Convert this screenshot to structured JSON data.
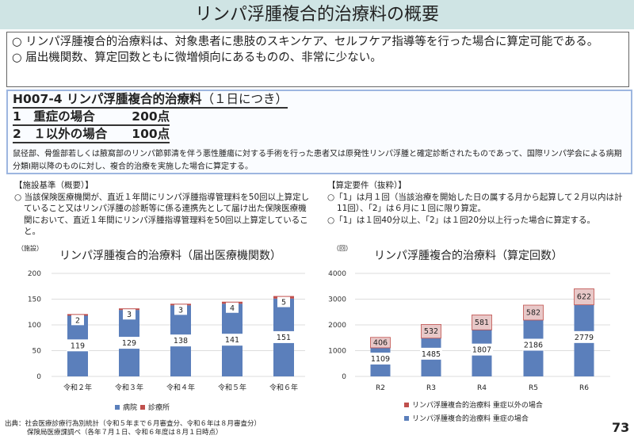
{
  "title": "リンパ浮腫複合的治療料の概要",
  "summary": [
    "○ リンパ浮腫複合的治療料は、対象患者に患肢のスキンケア、セルフケア指導等を行った場合に算定可能である。",
    "○ 届出機関数、算定回数ともに微増傾向にあるものの、非常に少ない。"
  ],
  "code": {
    "heading": "H007-4 リンパ浮腫複合的治療料",
    "heading_note": "（１日につき）",
    "item1": "1　重症の場合　　　200点",
    "item2": "2　１以外の場合　　100点",
    "desc": "鼠径部、骨盤部若しくは腋窩部のリンパ節郭清を伴う悪性腫瘍に対する手術を行った患者又は原発性リンパ浮腫と確定診断されたものであって、国際リンパ学会による病期分類Ⅰ期以降のものに対し、複合的治療を実施した場合に算定する。"
  },
  "facility": {
    "heading": "【施設基準（概要）】",
    "text": "○ 当該保険医療機関が、直近１年間にリンパ浮腫指導管理料を50回以上算定していること又はリンパ浮腫の診断等に係る連携先として届け出た保険医療機関において、直近１年間にリンパ浮腫指導管理料を50回以上算定していること。"
  },
  "requirements": {
    "heading": "【算定要件（抜粋）】",
    "items": [
      "○「1」は月１回（当該治療を開始した日の属する月から起算して２月以内は計11回）、「2」は６月に１回に限り算定。",
      "○「1」は１回40分以上、「2」は１回20分以上行った場合に算定する。"
    ]
  },
  "chart_data": [
    {
      "type": "bar",
      "stacked": true,
      "title": "リンパ浮腫複合的治療料（届出医療機関数）",
      "unit": "（施設）",
      "categories": [
        "令和２年",
        "令和３年",
        "令和４年",
        "令和５年",
        "令和６年"
      ],
      "ylim": [
        0,
        200
      ],
      "yticks": [
        0,
        50,
        100,
        150,
        200
      ],
      "series": [
        {
          "name": "病院",
          "values": [
            119,
            129,
            138,
            141,
            151
          ],
          "color": "#5b7fbb"
        },
        {
          "name": "診療所",
          "values": [
            2,
            3,
            3,
            4,
            5
          ],
          "color": "#c0504d"
        }
      ],
      "legend": "bottom"
    },
    {
      "type": "bar",
      "stacked": true,
      "title": "リンパ浮腫複合的治療料（算定回数）",
      "unit": "（回）",
      "categories": [
        "R2",
        "R3",
        "R4",
        "R5",
        "R6"
      ],
      "ylim": [
        0,
        4000
      ],
      "yticks": [
        0,
        1000,
        2000,
        3000,
        4000
      ],
      "series": [
        {
          "name": "リンパ浮腫複合的治療料  重症の場合",
          "values": [
            1109,
            1485,
            1807,
            2186,
            2779
          ],
          "color": "#5b7fbb"
        },
        {
          "name": "リンパ浮腫複合的治療料  重症以外の場合",
          "values": [
            406,
            532,
            581,
            582,
            622
          ],
          "color": "#c0504d"
        }
      ],
      "legend": "bottom"
    }
  ],
  "footer": {
    "line1": "出典：社会医療診療行為別統計（令和５年まで６月審査分、令和６年は８月審査分）",
    "line2": "保険局医療課調べ（各年７月１日、令和６年度は８月１日時点）"
  },
  "page_number": "73"
}
